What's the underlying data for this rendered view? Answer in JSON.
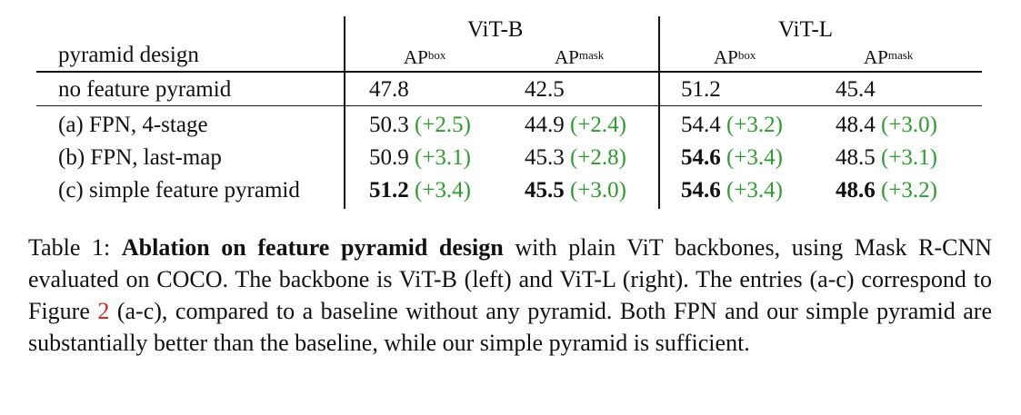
{
  "table": {
    "group_headers": [
      "ViT-B",
      "ViT-L"
    ],
    "row_header": "pyramid design",
    "metric_base": "AP",
    "metric_box_sup": "box",
    "metric_mask_sup": "mask",
    "baseline": {
      "label": "no feature pyramid",
      "values": [
        "47.8",
        "42.5",
        "51.2",
        "45.4"
      ]
    },
    "rows": [
      {
        "label": "(a) FPN, 4-stage",
        "cells": [
          {
            "value": "50.3",
            "delta": "(+2.5)"
          },
          {
            "value": "44.9",
            "delta": "(+2.4)"
          },
          {
            "value": "54.4",
            "delta": "(+3.2)"
          },
          {
            "value": "48.4",
            "delta": "(+3.0)"
          }
        ]
      },
      {
        "label": "(b) FPN, last-map",
        "cells": [
          {
            "value": "50.9",
            "delta": "(+3.1)"
          },
          {
            "value": "45.3",
            "delta": "(+2.8)"
          },
          {
            "value": "54.6",
            "delta": "(+3.4)"
          },
          {
            "value": "48.5",
            "delta": "(+3.1)"
          }
        ]
      },
      {
        "label": "(c) simple feature pyramid",
        "cells": [
          {
            "value": "51.2",
            "delta": "(+3.4)"
          },
          {
            "value": "45.5",
            "delta": "(+3.0)"
          },
          {
            "value": "54.6",
            "delta": "(+3.4)"
          },
          {
            "value": "48.6",
            "delta": "(+3.2)"
          }
        ]
      }
    ]
  },
  "caption": {
    "prefix": "Table 1: ",
    "bold": "Ablation on feature pyramid design",
    "text1": " with plain ViT backbones, using Mask R-CNN evaluated on COCO. The backbone is ViT-B (left) and ViT-L (right). The entries (a-c) correspond to Figure ",
    "ref": "2",
    "text2": " (a-c), compared to a baseline without any pyramid. Both FPN and our simple pyramid are substantially better than the baseline, while our simple pyramid is sufficient."
  },
  "colors": {
    "delta": "#2f9a2f",
    "reference": "#d42a2a"
  }
}
